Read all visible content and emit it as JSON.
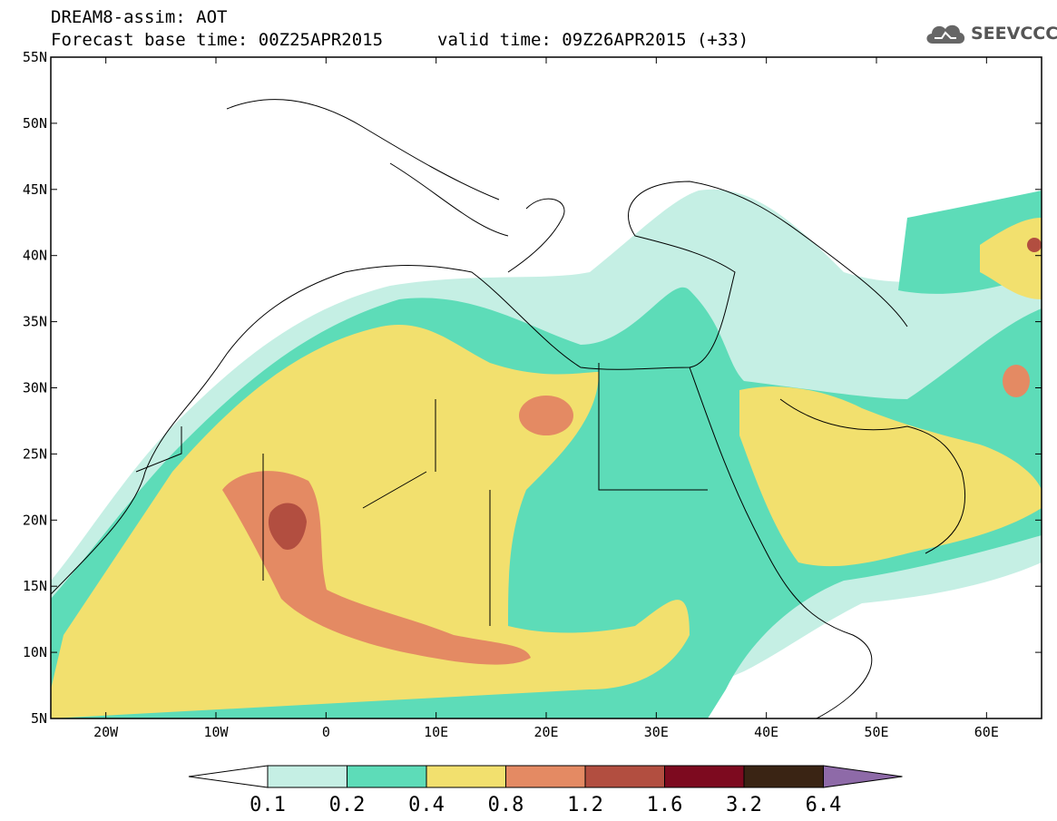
{
  "header": {
    "title": "DREAM8-assim: AOT",
    "base_time": "Forecast base time: 00Z25APR2015",
    "valid_time": "valid time: 09Z26APR2015 (+33)"
  },
  "logo": {
    "text": "SEEVCCC",
    "icon": "cloud-icon"
  },
  "map": {
    "lat_range": [
      5,
      55
    ],
    "lon_range": [
      -25,
      65
    ],
    "lat_ticks": [
      "5N",
      "10N",
      "15N",
      "20N",
      "25N",
      "30N",
      "35N",
      "40N",
      "45N",
      "50N",
      "55N"
    ],
    "lon_ticks": [
      "20W",
      "10W",
      "0",
      "10E",
      "20E",
      "30E",
      "40E",
      "50E",
      "60E"
    ],
    "lon_tick_values": [
      -20,
      -10,
      0,
      10,
      20,
      30,
      40,
      50,
      60
    ],
    "lat_tick_values": [
      5,
      10,
      15,
      20,
      25,
      30,
      35,
      40,
      45,
      50,
      55
    ]
  },
  "colorbar": {
    "labels": [
      "0.1",
      "0.2",
      "0.4",
      "0.8",
      "1.2",
      "1.6",
      "3.2",
      "6.4"
    ],
    "colors": [
      "#ffffff",
      "#c5efe4",
      "#5ddcb8",
      "#f2e06e",
      "#e48a63",
      "#b24e40",
      "#7d0a1f",
      "#3a2414",
      "#8e6aa8"
    ]
  }
}
